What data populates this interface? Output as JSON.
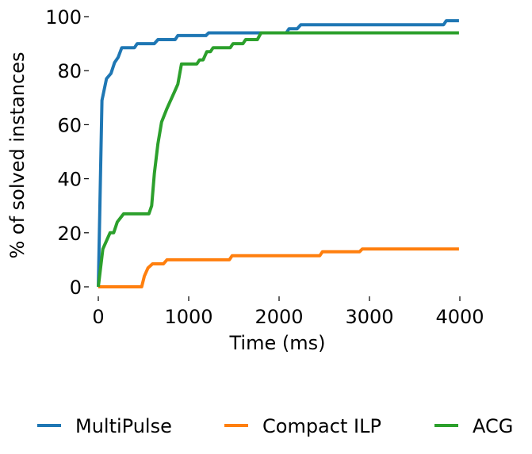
{
  "chart_data": {
    "type": "line",
    "xlabel": "Time (ms)",
    "ylabel": "% of solved instances",
    "xlim": [
      0,
      4000
    ],
    "ylim": [
      0,
      100
    ],
    "x_ticks": [
      0,
      1000,
      2000,
      3000,
      4000
    ],
    "y_ticks": [
      0,
      20,
      40,
      60,
      80,
      100
    ],
    "grid": false,
    "legend_placement": "bottom",
    "series": [
      {
        "name": "MultiPulse",
        "color": "#1f77b4",
        "points": [
          [
            0,
            0
          ],
          [
            40,
            69
          ],
          [
            90,
            77
          ],
          [
            140,
            79
          ],
          [
            180,
            83
          ],
          [
            220,
            85
          ],
          [
            260,
            88.5
          ],
          [
            400,
            88.5
          ],
          [
            430,
            90
          ],
          [
            620,
            90
          ],
          [
            660,
            91.5
          ],
          [
            850,
            91.5
          ],
          [
            880,
            93
          ],
          [
            1190,
            93
          ],
          [
            1220,
            94
          ],
          [
            2080,
            94
          ],
          [
            2110,
            95.5
          ],
          [
            2200,
            95.5
          ],
          [
            2240,
            97
          ],
          [
            3820,
            97
          ],
          [
            3850,
            98.5
          ],
          [
            3990,
            98.5
          ]
        ]
      },
      {
        "name": "Compact ILP",
        "color": "#ff7f0e",
        "points": [
          [
            0,
            0
          ],
          [
            480,
            0
          ],
          [
            510,
            4
          ],
          [
            550,
            7
          ],
          [
            600,
            8.5
          ],
          [
            720,
            8.5
          ],
          [
            760,
            10
          ],
          [
            1450,
            10
          ],
          [
            1480,
            11.5
          ],
          [
            2450,
            11.5
          ],
          [
            2480,
            13
          ],
          [
            2890,
            13
          ],
          [
            2920,
            14
          ],
          [
            3990,
            14
          ]
        ]
      },
      {
        "name": "ACG",
        "color": "#2ca02c",
        "points": [
          [
            0,
            0
          ],
          [
            50,
            14
          ],
          [
            130,
            20
          ],
          [
            170,
            20
          ],
          [
            210,
            24
          ],
          [
            280,
            27
          ],
          [
            560,
            27
          ],
          [
            590,
            30
          ],
          [
            620,
            42
          ],
          [
            660,
            53
          ],
          [
            700,
            61
          ],
          [
            760,
            66
          ],
          [
            840,
            72
          ],
          [
            880,
            75
          ],
          [
            920,
            82.5
          ],
          [
            1090,
            82.5
          ],
          [
            1120,
            84
          ],
          [
            1160,
            84
          ],
          [
            1200,
            87
          ],
          [
            1240,
            87
          ],
          [
            1270,
            88.5
          ],
          [
            1460,
            88.5
          ],
          [
            1490,
            90
          ],
          [
            1600,
            90
          ],
          [
            1630,
            91.5
          ],
          [
            1760,
            91.5
          ],
          [
            1800,
            94
          ],
          [
            3990,
            94
          ]
        ]
      }
    ]
  }
}
